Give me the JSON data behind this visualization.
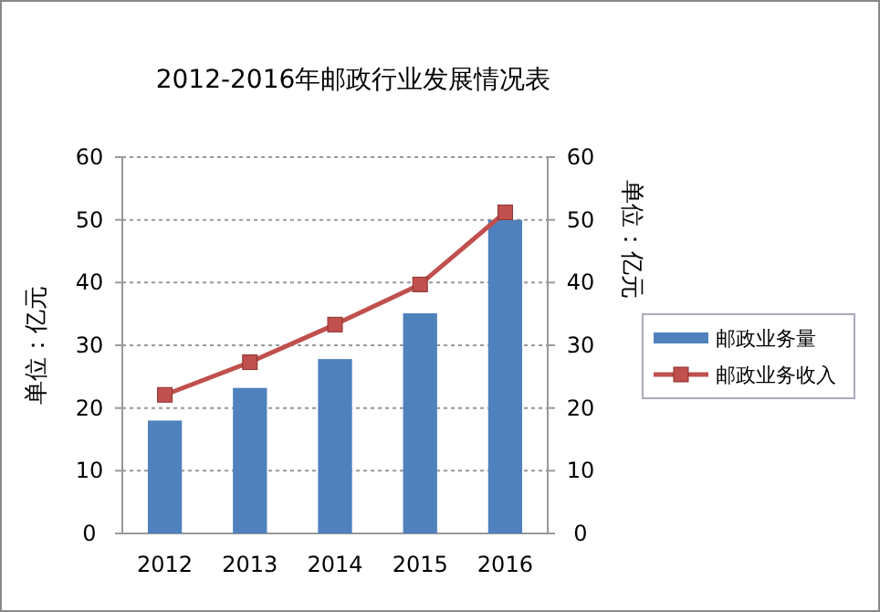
{
  "chart_data": {
    "type": "bar",
    "title": "2012-2016年邮政行业发展情况表",
    "ylabel": "单位：亿元",
    "y2label": "单位：亿元",
    "categories": [
      "2012",
      "2013",
      "2014",
      "2015",
      "2016"
    ],
    "series": [
      {
        "name": "邮政业务量",
        "color": "#4f81bd",
        "values": [
          18,
          23.2,
          27.8,
          35.1,
          50
        ]
      },
      {
        "name": "邮政业务收入",
        "type": "line",
        "color": "#c0504d",
        "values": [
          22.1,
          27.3,
          33.3,
          39.7,
          51.2
        ],
        "marker": "square"
      }
    ],
    "ylim": [
      0,
      60
    ],
    "yticks": [
      0,
      10,
      20,
      30,
      40,
      50,
      60
    ],
    "y2lim": [
      0,
      60
    ],
    "y2ticks": [
      0,
      10,
      20,
      30,
      40,
      50,
      60
    ],
    "grid": "y",
    "legend": "right"
  }
}
